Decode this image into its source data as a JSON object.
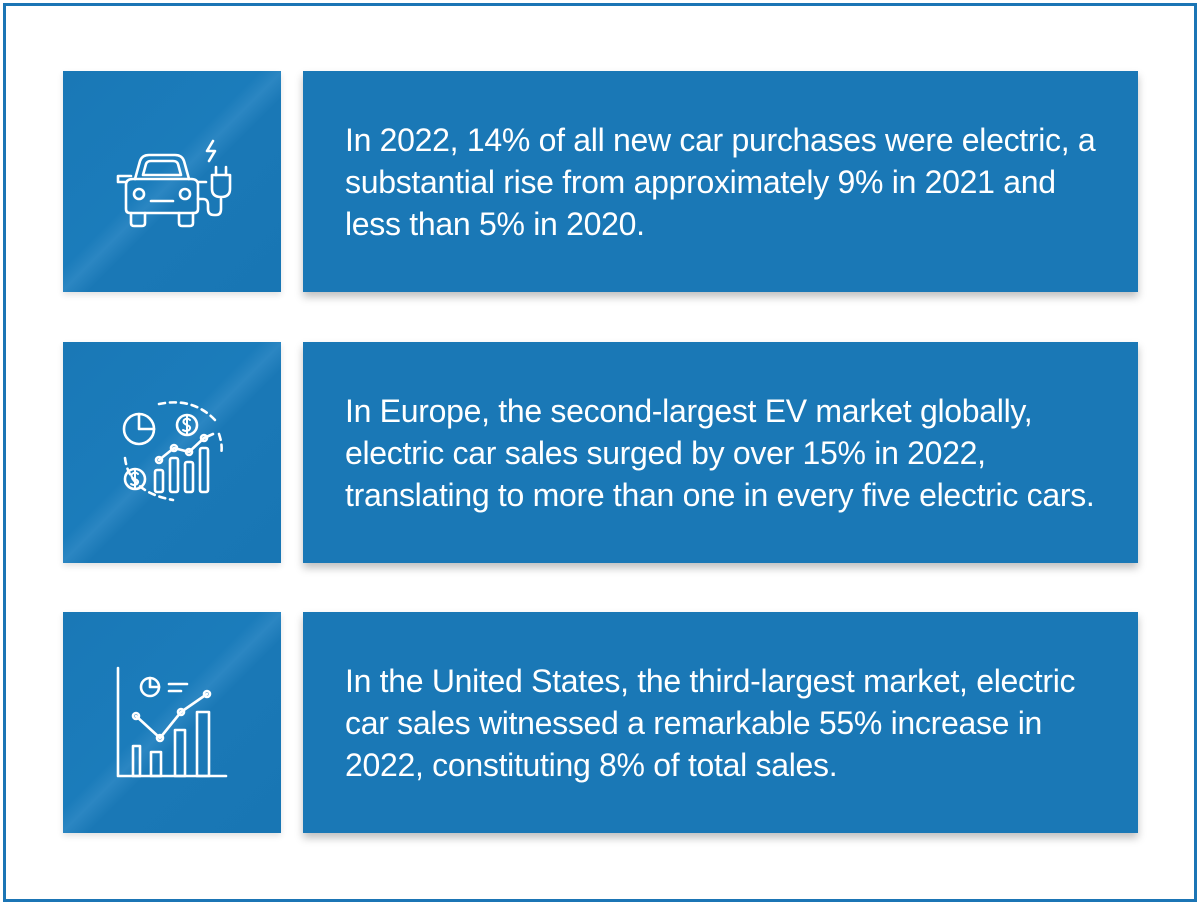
{
  "colors": {
    "accent": "#1a78b6",
    "frame": "#1b75b5",
    "text": "#ffffff"
  },
  "cards": [
    {
      "icon": "electric-car-plug-icon",
      "text": "In 2022, 14% of all new car purchases were electric, a substantial rise from approximately 9% in 2021 and less than 5% in 2020."
    },
    {
      "icon": "financial-growth-chart-icon",
      "text": "In Europe, the second-largest EV market globally, electric car sales surged by over 15% in 2022, translating to more than one in every five electric cars."
    },
    {
      "icon": "statistics-bar-chart-icon",
      "text": "In the United States, the third-largest market, electric car sales witnessed a remarkable 55% increase in 2022, constituting 8% of total sales."
    }
  ]
}
